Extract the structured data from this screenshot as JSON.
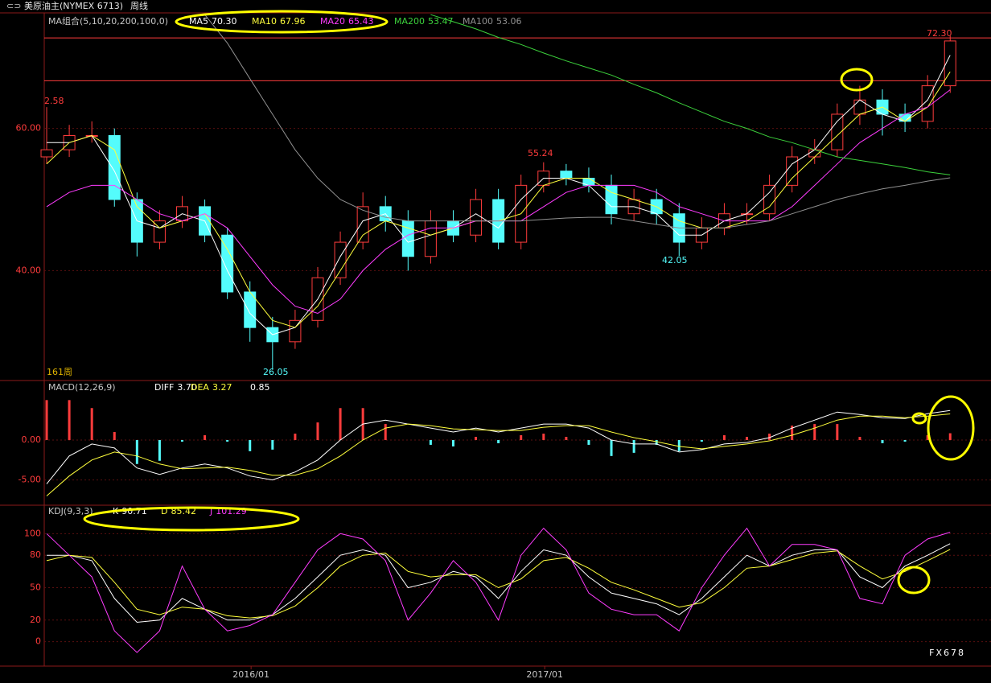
{
  "header": {
    "symbol": "美原油主(NYMEX 6713)",
    "period": "周线"
  },
  "watermark": "FX678",
  "chart_data": [
    {
      "type": "candlestick",
      "title": "MA组合(5,10,20,200,100,0)",
      "x": [
        0,
        4,
        8,
        12,
        16,
        20,
        24,
        28,
        32,
        36,
        40,
        44,
        48,
        52,
        56,
        60,
        64,
        68,
        72,
        76,
        80,
        84,
        88,
        92,
        96,
        100,
        104,
        108,
        112,
        116,
        120,
        124,
        128,
        132,
        136,
        140,
        144,
        148,
        152,
        156,
        160
      ],
      "open": [
        56,
        57,
        59,
        59,
        50,
        44,
        47,
        49,
        45,
        37,
        32,
        30,
        33,
        39,
        44,
        49,
        47,
        42,
        47,
        45,
        50,
        44,
        52,
        54,
        53,
        52,
        48,
        50,
        48,
        44,
        46,
        48,
        48,
        52,
        56,
        57,
        62,
        64,
        62,
        61,
        66
      ],
      "high": [
        63,
        60.5,
        61,
        60,
        51,
        48.5,
        50.5,
        50,
        46,
        38.5,
        33.5,
        34.5,
        40.5,
        45.5,
        51,
        50.5,
        48.5,
        48.5,
        48.5,
        51.5,
        51.5,
        53.5,
        55.24,
        55,
        54.5,
        53.5,
        51.5,
        51.5,
        49.5,
        47.5,
        49.5,
        49.5,
        53.5,
        57.5,
        58.5,
        63.5,
        66,
        65.5,
        63.5,
        67.5,
        73
      ],
      "low": [
        55,
        56,
        58,
        49,
        42,
        43,
        46,
        44,
        36,
        30,
        26.05,
        29,
        32,
        38,
        43,
        45.5,
        40,
        41,
        44,
        44,
        43,
        43,
        51,
        52,
        51,
        46.5,
        47,
        46.5,
        42.05,
        43,
        45,
        46.5,
        47,
        51,
        55,
        56,
        60.5,
        59,
        59.5,
        60,
        65
      ],
      "close": [
        57,
        59,
        59,
        50,
        44,
        47,
        49,
        45,
        37,
        32,
        30,
        33,
        39,
        44,
        49,
        47,
        42,
        47,
        45,
        50,
        44,
        52,
        54,
        53,
        52,
        48,
        50,
        48,
        44,
        46,
        48,
        48,
        52,
        56,
        57,
        62,
        64,
        62,
        61,
        66,
        72.3
      ],
      "up_color": "#ff3c3c",
      "down_color": "#54fcfc",
      "series": [
        {
          "name": "MA5",
          "legend_value": "70.30",
          "color": "#ffffff",
          "values": [
            58,
            58,
            59,
            54,
            47,
            46,
            48,
            47,
            40,
            34,
            31,
            32,
            36,
            42,
            47,
            48,
            44,
            45,
            46,
            48,
            46,
            50,
            53,
            53,
            52,
            49,
            49,
            48,
            45,
            45,
            47,
            48,
            51,
            55,
            57,
            61,
            64,
            62,
            61,
            64,
            70.3
          ]
        },
        {
          "name": "MA10",
          "legend_value": "67.96",
          "color": "#ffff3c",
          "values": [
            55,
            58,
            59,
            57,
            49,
            46,
            47,
            48,
            43,
            37,
            33,
            32,
            35,
            40,
            45,
            47,
            46,
            45,
            46,
            47,
            47,
            48,
            52,
            53,
            53,
            51,
            50,
            49,
            47,
            46,
            46,
            47,
            49,
            53,
            56,
            59,
            62,
            63,
            61,
            63,
            67.96
          ]
        },
        {
          "name": "MA20",
          "legend_value": "65.43",
          "color": "#ff3cff",
          "values": [
            49,
            51,
            52,
            52,
            50,
            48,
            47,
            48,
            46,
            42,
            38,
            35,
            34,
            36,
            40,
            43,
            45,
            46,
            46,
            47,
            47,
            47,
            49,
            51,
            52,
            52,
            52,
            51,
            49,
            48,
            47,
            47,
            47,
            49,
            52,
            55,
            58,
            60,
            62,
            63,
            65.43
          ]
        },
        {
          "name": "MA200",
          "legend_value": "53.47",
          "color": "#3cd23c",
          "values": [
            null,
            null,
            null,
            null,
            null,
            null,
            null,
            null,
            null,
            null,
            null,
            null,
            null,
            null,
            null,
            null,
            null,
            76,
            75,
            74,
            72.8,
            71.8,
            70.6,
            69.5,
            68.5,
            67.5,
            66.2,
            65,
            63.6,
            62.3,
            61,
            60,
            58.8,
            58,
            57,
            56,
            55.5,
            55,
            54.5,
            53.9,
            53.47
          ]
        },
        {
          "name": "MA100",
          "legend_value": "53.06",
          "color": "#909090",
          "values": [
            null,
            null,
            null,
            null,
            null,
            null,
            null,
            76,
            72,
            67,
            62,
            57,
            53,
            50,
            48.5,
            47.5,
            47,
            47,
            47,
            47,
            47,
            47,
            47.2,
            47.4,
            47.5,
            47.5,
            47,
            46.5,
            46,
            46,
            46,
            46.5,
            47,
            48,
            49,
            50,
            50.8,
            51.5,
            52,
            52.6,
            53.06
          ]
        }
      ],
      "hlines": [
        72.73,
        66.7
      ],
      "hline_color": "#ff3c3c",
      "annotations": [
        "2.58",
        "55.24",
        "26.05",
        "42.05",
        "72.30",
        "161周"
      ],
      "xlim": [
        -0.43,
        167.23
      ],
      "ylim": [
        24.55,
        76.25
      ],
      "yticks": [
        {
          "value": 60,
          "label": "60.00"
        },
        {
          "value": 40,
          "label": "40.00"
        }
      ],
      "grid": true
    },
    {
      "type": "macd",
      "title": "MACD(12,26,9)",
      "x": [
        0,
        4,
        8,
        12,
        16,
        20,
        24,
        28,
        32,
        36,
        40,
        44,
        48,
        52,
        56,
        60,
        64,
        68,
        72,
        76,
        80,
        84,
        88,
        92,
        96,
        100,
        104,
        108,
        112,
        116,
        120,
        124,
        128,
        132,
        136,
        140,
        144,
        148,
        152,
        156,
        160
      ],
      "bars": {
        "legend_value": "0.85",
        "up_color": "#ff3c3c",
        "down_color": "#54fcfc",
        "values": [
          5,
          5,
          4,
          1,
          -3,
          -2.6,
          -0.2,
          0.6,
          -0.2,
          -1.4,
          -1.2,
          0.8,
          2.2,
          4,
          4,
          2,
          0,
          -0.6,
          -0.8,
          0.4,
          -0.4,
          0.6,
          0.8,
          0.4,
          -0.6,
          -2,
          -1.6,
          -0.6,
          -1.4,
          -0.2,
          0.6,
          0.4,
          0.8,
          1.8,
          2,
          2,
          0.4,
          -0.4,
          -0.2,
          0.6,
          0.85
        ]
      },
      "series": [
        {
          "name": "DIFF",
          "legend_value": "3.70",
          "color": "#ffffff",
          "values": [
            -5.5,
            -2,
            -0.5,
            -1,
            -3.5,
            -4.3,
            -3.5,
            -3,
            -3.5,
            -4.5,
            -5,
            -4,
            -2.5,
            0,
            2,
            2.5,
            2,
            1.5,
            1,
            1.5,
            1,
            1.5,
            2,
            2,
            1.5,
            0,
            -0.5,
            -0.5,
            -1.5,
            -1.2,
            -0.5,
            -0.3,
            0.3,
            1.5,
            2.5,
            3.5,
            3.2,
            2.8,
            2.7,
            3.3,
            3.7
          ]
        },
        {
          "name": "DEA",
          "legend_value": "3.27",
          "color": "#ffff3c",
          "values": [
            -7,
            -4.5,
            -2.5,
            -1.5,
            -2,
            -3,
            -3.6,
            -3.5,
            -3.4,
            -3.8,
            -4.4,
            -4.4,
            -3.6,
            -2,
            0,
            1.5,
            2,
            1.8,
            1.4,
            1.3,
            1.2,
            1.2,
            1.6,
            1.8,
            1.8,
            1,
            0.3,
            -0.2,
            -0.8,
            -1.1,
            -0.8,
            -0.5,
            -0.1,
            0.6,
            1.5,
            2.5,
            3,
            3,
            2.8,
            3,
            3.27
          ]
        }
      ],
      "xlim": [
        -0.43,
        167.23
      ],
      "ylim": [
        -8.16,
        7.45
      ],
      "yticks": [
        {
          "value": 0,
          "label": "0.00"
        },
        {
          "value": -5,
          "label": "-5.00"
        }
      ],
      "grid": true
    },
    {
      "type": "line",
      "title": "KDJ(9,3,3)",
      "x": [
        0,
        4,
        8,
        12,
        16,
        20,
        24,
        28,
        32,
        36,
        40,
        44,
        48,
        52,
        56,
        60,
        64,
        68,
        72,
        76,
        80,
        84,
        88,
        92,
        96,
        100,
        104,
        108,
        112,
        116,
        120,
        124,
        128,
        132,
        136,
        140,
        144,
        148,
        152,
        156,
        160
      ],
      "series": [
        {
          "name": "K",
          "legend_value": "90.71",
          "color": "#ffffff",
          "values": [
            80,
            80,
            75,
            40,
            18,
            20,
            40,
            30,
            20,
            20,
            25,
            40,
            60,
            80,
            85,
            80,
            50,
            55,
            65,
            60,
            40,
            65,
            85,
            80,
            60,
            45,
            40,
            35,
            25,
            40,
            60,
            80,
            70,
            80,
            85,
            85,
            60,
            50,
            70,
            80,
            90.71
          ]
        },
        {
          "name": "D",
          "legend_value": "85.42",
          "color": "#ffff3c",
          "values": [
            75,
            80,
            78,
            55,
            30,
            25,
            32,
            30,
            24,
            22,
            24,
            33,
            50,
            70,
            80,
            82,
            65,
            60,
            62,
            62,
            50,
            58,
            75,
            78,
            68,
            55,
            48,
            40,
            32,
            36,
            50,
            68,
            70,
            76,
            82,
            84,
            70,
            58,
            65,
            75,
            85.42
          ]
        },
        {
          "name": "J",
          "legend_value": "101.29",
          "color": "#ff3cff",
          "values": [
            100,
            80,
            60,
            10,
            -10,
            10,
            70,
            30,
            10,
            15,
            25,
            55,
            85,
            100,
            95,
            75,
            20,
            45,
            75,
            55,
            20,
            80,
            105,
            85,
            45,
            30,
            25,
            25,
            10,
            50,
            80,
            105,
            70,
            90,
            90,
            85,
            40,
            35,
            80,
            95,
            101.29
          ]
        }
      ],
      "xlim": [
        -0.43,
        167.23
      ],
      "ylim": [
        -22.6,
        126.3
      ],
      "xticks": [
        {
          "value": 36.2,
          "label": "2016/01"
        },
        {
          "value": 88.2,
          "label": "2017/01"
        }
      ],
      "yticks": [
        100,
        80,
        50,
        20,
        0
      ],
      "grid": true
    }
  ]
}
